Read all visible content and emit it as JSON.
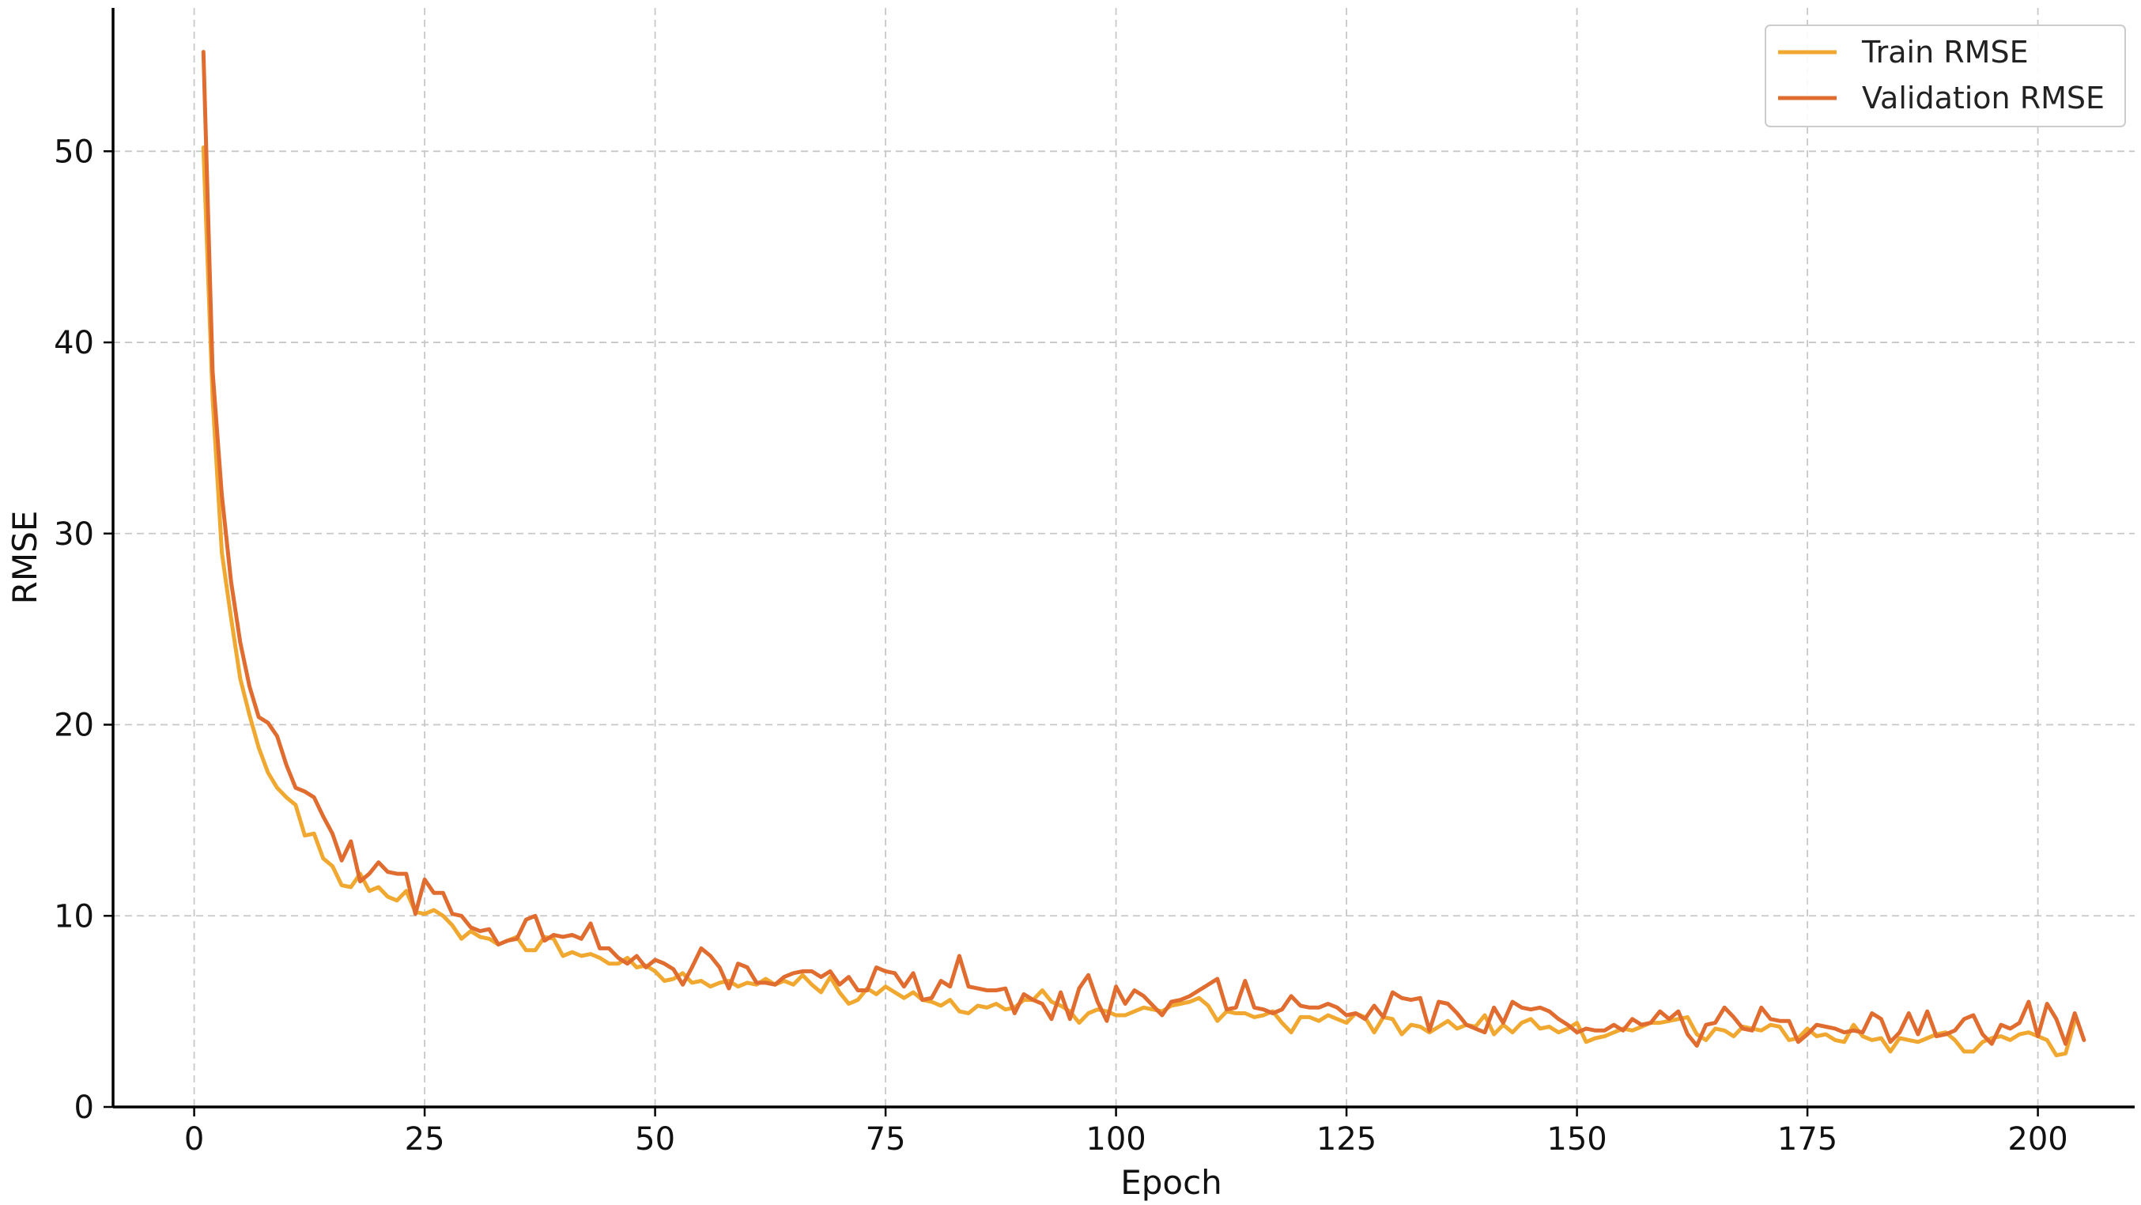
{
  "chart_data": {
    "type": "line",
    "title": "",
    "xlabel": "Epoch",
    "ylabel": "RMSE",
    "xlim": [
      -8.8,
      210.5
    ],
    "ylim": [
      0,
      57.5
    ],
    "xticks": [
      0,
      25,
      50,
      75,
      100,
      125,
      150,
      175,
      200
    ],
    "yticks": [
      0,
      10,
      20,
      30,
      40,
      50
    ],
    "xtick_labels": [
      "0",
      "25",
      "50",
      "75",
      "100",
      "125",
      "150",
      "175",
      "200"
    ],
    "ytick_labels": [
      "0",
      "10",
      "20",
      "30",
      "40",
      "50"
    ],
    "grid": true,
    "legend_position": "top-right",
    "x_start": 1,
    "x_step": 1,
    "series": [
      {
        "name": "Train RMSE",
        "color": "#f0a830",
        "values": [
          50.2,
          37.1,
          29.0,
          25.6,
          22.4,
          20.5,
          18.8,
          17.5,
          16.7,
          16.2,
          15.8,
          14.2,
          14.3,
          13.0,
          12.6,
          11.6,
          11.5,
          12.2,
          11.3,
          11.5,
          11.0,
          10.8,
          11.3,
          10.2,
          10.1,
          10.3,
          10.0,
          9.5,
          8.8,
          9.2,
          8.9,
          8.8,
          8.5,
          8.7,
          8.9,
          8.2,
          8.2,
          8.9,
          8.8,
          7.9,
          8.1,
          7.9,
          8.0,
          7.8,
          7.5,
          7.5,
          7.8,
          7.3,
          7.4,
          7.1,
          6.6,
          6.7,
          7.0,
          6.5,
          6.6,
          6.3,
          6.5,
          6.6,
          6.3,
          6.5,
          6.4,
          6.7,
          6.4,
          6.6,
          6.4,
          6.9,
          6.4,
          6.0,
          6.8,
          6.0,
          5.4,
          5.6,
          6.2,
          5.9,
          6.3,
          6.0,
          5.7,
          6.0,
          5.6,
          5.5,
          5.3,
          5.6,
          5.0,
          4.9,
          5.3,
          5.2,
          5.4,
          5.1,
          5.2,
          5.6,
          5.6,
          6.1,
          5.5,
          5.3,
          5.0,
          4.4,
          4.9,
          5.1,
          5.0,
          4.8,
          4.8,
          5.0,
          5.2,
          5.1,
          5.0,
          5.3,
          5.4,
          5.5,
          5.7,
          5.3,
          4.5,
          5.0,
          4.9,
          4.9,
          4.7,
          4.8,
          5.0,
          4.4,
          3.9,
          4.7,
          4.7,
          4.5,
          4.8,
          4.6,
          4.4,
          4.9,
          4.7,
          3.9,
          4.7,
          4.6,
          3.8,
          4.3,
          4.2,
          3.9,
          4.2,
          4.5,
          4.1,
          4.3,
          4.2,
          4.8,
          3.8,
          4.3,
          3.9,
          4.4,
          4.6,
          4.1,
          4.2,
          3.9,
          4.1,
          4.4,
          3.4,
          3.6,
          3.7,
          3.9,
          4.1,
          4.0,
          4.2,
          4.4,
          4.4,
          4.5,
          4.6,
          4.7,
          3.8,
          3.5,
          4.1,
          4.0,
          3.7,
          4.2,
          4.1,
          4.0,
          4.3,
          4.2,
          3.5,
          3.6,
          4.1,
          3.7,
          3.8,
          3.5,
          3.4,
          4.3,
          3.7,
          3.5,
          3.6,
          2.9,
          3.6,
          3.5,
          3.4,
          3.6,
          3.8,
          3.9,
          3.5,
          2.9,
          2.9,
          3.4,
          3.6,
          3.7,
          3.5,
          3.8,
          3.9,
          3.7,
          3.5,
          2.7,
          2.8,
          4.5
        ]
      },
      {
        "name": "Validation RMSE",
        "color": "#e06c30",
        "values": [
          55.2,
          38.5,
          32.0,
          27.5,
          24.3,
          22.0,
          20.4,
          20.1,
          19.4,
          17.9,
          16.7,
          16.5,
          16.2,
          15.2,
          14.3,
          12.9,
          13.9,
          11.8,
          12.2,
          12.8,
          12.3,
          12.2,
          12.2,
          10.1,
          11.9,
          11.2,
          11.2,
          10.1,
          10.0,
          9.4,
          9.2,
          9.3,
          8.5,
          8.7,
          8.8,
          9.8,
          10.0,
          8.7,
          9.0,
          8.9,
          9.0,
          8.8,
          9.6,
          8.3,
          8.3,
          7.8,
          7.5,
          7.9,
          7.3,
          7.7,
          7.5,
          7.2,
          6.4,
          7.3,
          8.3,
          7.9,
          7.3,
          6.2,
          7.5,
          7.3,
          6.5,
          6.5,
          6.4,
          6.8,
          7.0,
          7.1,
          7.1,
          6.8,
          7.1,
          6.4,
          6.8,
          6.1,
          6.1,
          7.3,
          7.1,
          7.0,
          6.3,
          7.0,
          5.6,
          5.7,
          6.6,
          6.3,
          7.9,
          6.3,
          6.2,
          6.1,
          6.1,
          6.2,
          4.9,
          5.9,
          5.6,
          5.4,
          4.6,
          6.0,
          4.6,
          6.2,
          6.9,
          5.5,
          4.5,
          6.3,
          5.4,
          6.1,
          5.8,
          5.3,
          4.8,
          5.5,
          5.6,
          5.8,
          6.1,
          6.4,
          6.7,
          5.1,
          5.2,
          6.6,
          5.2,
          5.1,
          4.9,
          5.1,
          5.8,
          5.3,
          5.2,
          5.2,
          5.4,
          5.2,
          4.8,
          4.9,
          4.6,
          5.3,
          4.7,
          6.0,
          5.7,
          5.6,
          5.7,
          4.0,
          5.5,
          5.4,
          4.9,
          4.3,
          4.1,
          3.9,
          5.2,
          4.4,
          5.5,
          5.2,
          5.1,
          5.2,
          5.0,
          4.6,
          4.3,
          3.9,
          4.1,
          4.0,
          4.0,
          4.3,
          4.0,
          4.6,
          4.3,
          4.4,
          5.0,
          4.6,
          5.0,
          3.8,
          3.2,
          4.3,
          4.4,
          5.2,
          4.7,
          4.1,
          4.0,
          5.2,
          4.6,
          4.5,
          4.5,
          3.4,
          3.8,
          4.3,
          4.2,
          4.1,
          3.9,
          4.0,
          3.9,
          4.9,
          4.6,
          3.4,
          3.9,
          4.9,
          3.8,
          5.0,
          3.7,
          3.8,
          4.0,
          4.6,
          4.8,
          3.8,
          3.3,
          4.3,
          4.1,
          4.4,
          5.5,
          3.7,
          5.4,
          4.6,
          3.3,
          4.9,
          3.5
        ]
      }
    ]
  }
}
